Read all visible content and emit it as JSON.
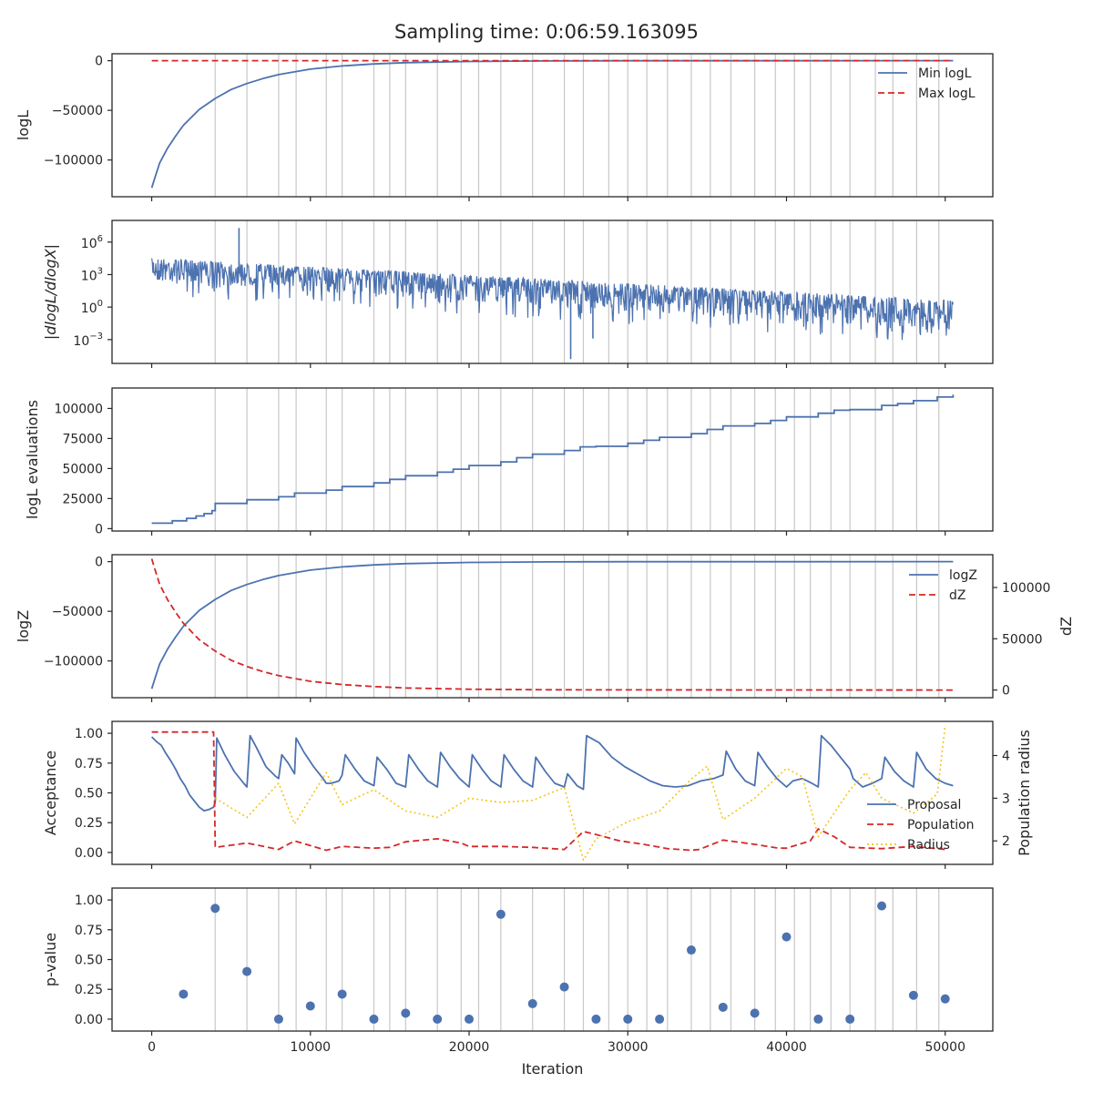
{
  "title": "Sampling time: 0:06:59.163095",
  "colors": {
    "blue": "#4c72b0",
    "red": "#d62728",
    "gold": "#f5c518",
    "grid": "#c8c8c8",
    "axis": "#262626"
  },
  "chart_data": [
    {
      "id": "logl",
      "type": "line",
      "ylabel": "logL",
      "xlim": [
        -2500,
        53000
      ],
      "ylim": [
        -137000,
        7000
      ],
      "yticks": [
        0,
        -50000,
        -100000
      ],
      "ytick_labels": [
        "0",
        "−50000",
        "−100000"
      ],
      "legend": {
        "position": "top-right",
        "entries": [
          "Min logL",
          "Max logL"
        ]
      },
      "series": [
        {
          "name": "Min logL",
          "style": "solid",
          "color": "blue",
          "x": [
            0,
            200,
            500,
            1000,
            1500,
            2000,
            3000,
            4000,
            5000,
            6000,
            7000,
            8000,
            10000,
            12000,
            14000,
            16000,
            20000,
            25000,
            30000,
            40000,
            50500
          ],
          "y": [
            -128000,
            -118000,
            -103000,
            -88000,
            -76000,
            -65000,
            -49000,
            -38000,
            -29000,
            -23000,
            -18000,
            -14000,
            -8500,
            -5300,
            -3300,
            -2000,
            -800,
            -250,
            -100,
            -20,
            0
          ]
        },
        {
          "name": "Max logL",
          "style": "dashed",
          "color": "red",
          "x": [
            0,
            50500
          ],
          "y": [
            0,
            0
          ]
        }
      ]
    },
    {
      "id": "dlogl",
      "type": "line",
      "ylabel": "|dlogL/dlogX|",
      "yscale": "log",
      "ylim_log10": [
        -5.2,
        8
      ],
      "yticks_log10": [
        6,
        3,
        0,
        -3
      ],
      "ytick_labels": [
        "10",
        "10",
        "10",
        "10"
      ],
      "ytick_exponents": [
        "6",
        "3",
        "0",
        "−3"
      ],
      "noise_band": {
        "x": [
          0,
          50500
        ],
        "upper_log10": [
          4.5,
          0.6
        ],
        "lower_log10": [
          2.3,
          -2.2
        ]
      },
      "spikes": [
        {
          "x": 5500,
          "log10": 7.3
        },
        {
          "x": 26400,
          "log10": -4.8
        },
        {
          "x": 27800,
          "log10": -2.9
        }
      ]
    },
    {
      "id": "evals",
      "type": "step",
      "ylabel": "logL evaluations",
      "ylim": [
        -2000,
        117000
      ],
      "yticks": [
        0,
        25000,
        50000,
        75000,
        100000
      ],
      "ytick_labels": [
        "0",
        "25000",
        "50000",
        "75000",
        "100000"
      ],
      "series": [
        {
          "name": "logL evaluations",
          "color": "blue",
          "x": [
            0,
            1300,
            2200,
            2800,
            3300,
            3800,
            4000,
            6000,
            8000,
            9000,
            11000,
            12000,
            14000,
            15000,
            16000,
            18000,
            19000,
            20000,
            22000,
            23000,
            24000,
            26000,
            27000,
            28000,
            30000,
            31000,
            32000,
            34000,
            35000,
            36000,
            38000,
            39000,
            40000,
            42000,
            43000,
            44000,
            46000,
            47000,
            48000,
            49500,
            50500
          ],
          "y": [
            4500,
            6500,
            8500,
            10500,
            12500,
            15000,
            21000,
            24000,
            26500,
            29500,
            32000,
            35000,
            38000,
            41000,
            44000,
            47000,
            49500,
            52500,
            55500,
            59000,
            62000,
            65000,
            68000,
            68500,
            71000,
            73500,
            76000,
            79000,
            82500,
            85500,
            87500,
            90000,
            93000,
            96000,
            98500,
            99000,
            102500,
            104000,
            106500,
            109500,
            111500
          ]
        }
      ]
    },
    {
      "id": "logz",
      "type": "line",
      "ylabel": "logZ",
      "ylabel2": "dZ",
      "ylim": [
        -137000,
        7000
      ],
      "yticks": [
        0,
        -50000,
        -100000
      ],
      "ytick_labels": [
        "0",
        "−50000",
        "−100000"
      ],
      "y2lim": [
        -7500,
        132000
      ],
      "y2ticks": [
        0,
        50000,
        100000
      ],
      "y2tick_labels": [
        "0",
        "50000",
        "100000"
      ],
      "legend": {
        "position": "top-right",
        "entries": [
          "logZ",
          "dZ"
        ]
      },
      "series": [
        {
          "name": "logZ",
          "axis": "left",
          "style": "solid",
          "color": "blue",
          "x": [
            0,
            200,
            500,
            1000,
            1500,
            2000,
            3000,
            4000,
            5000,
            6000,
            7000,
            8000,
            10000,
            12000,
            14000,
            16000,
            20000,
            25000,
            30000,
            40000,
            50500
          ],
          "y": [
            -128000,
            -118000,
            -103000,
            -88000,
            -76000,
            -65000,
            -49000,
            -38000,
            -29000,
            -23000,
            -18000,
            -14000,
            -8500,
            -5300,
            -3300,
            -2000,
            -800,
            -250,
            -100,
            -20,
            0
          ]
        },
        {
          "name": "dZ",
          "axis": "right",
          "style": "dashed",
          "color": "red",
          "x": [
            0,
            200,
            500,
            1000,
            1500,
            2000,
            3000,
            4000,
            5000,
            6000,
            7000,
            8000,
            10000,
            12000,
            14000,
            16000,
            20000,
            25000,
            30000,
            40000,
            50500
          ],
          "y": [
            128000,
            118000,
            103000,
            88000,
            76000,
            65000,
            49000,
            38000,
            29000,
            23000,
            18000,
            14000,
            8500,
            5300,
            3300,
            2000,
            800,
            250,
            100,
            20,
            0
          ]
        }
      ]
    },
    {
      "id": "accept",
      "type": "line",
      "ylabel": "Acceptance",
      "ylabel2": "Population radius",
      "ylim": [
        -0.1,
        1.1
      ],
      "yticks": [
        0,
        0.25,
        0.5,
        0.75,
        1
      ],
      "ytick_labels": [
        "0.00",
        "0.25",
        "0.50",
        "0.75",
        "1.00"
      ],
      "y2lim": [
        1.45,
        4.8
      ],
      "y2ticks": [
        2,
        3,
        4
      ],
      "y2tick_labels": [
        "2",
        "3",
        "4"
      ],
      "legend": {
        "position": "lower-right",
        "entries": [
          "Proposal",
          "Population",
          "Radius"
        ]
      },
      "series": [
        {
          "name": "Proposal",
          "axis": "left",
          "style": "solid",
          "color": "blue",
          "x": [
            0,
            300,
            600,
            900,
            1200,
            1500,
            1800,
            2100,
            2400,
            2700,
            3000,
            3300,
            3600,
            3900,
            4000,
            4100,
            4600,
            5200,
            5800,
            6000,
            6200,
            6600,
            7200,
            7800,
            8000,
            8200,
            8600,
            9000,
            9100,
            9600,
            10200,
            10800,
            11000,
            11300,
            11800,
            12000,
            12200,
            12800,
            13400,
            14000,
            14200,
            14800,
            15400,
            16000,
            16200,
            16800,
            17400,
            18000,
            18200,
            18800,
            19400,
            20000,
            20200,
            20800,
            21400,
            22000,
            22200,
            22800,
            23400,
            24000,
            24200,
            24800,
            25400,
            26000,
            26200,
            26800,
            27200,
            27400,
            28200,
            29000,
            29800,
            30600,
            31400,
            32200,
            33000,
            33800,
            34600,
            35400,
            36000,
            36200,
            36800,
            37400,
            38000,
            38200,
            38800,
            39400,
            40000,
            40400,
            41000,
            41600,
            42000,
            42200,
            42800,
            43400,
            44000,
            44200,
            44800,
            45400,
            46000,
            46200,
            46800,
            47400,
            48000,
            48200,
            48800,
            49400,
            50000,
            50500
          ],
          "y": [
            0.97,
            0.93,
            0.9,
            0.83,
            0.77,
            0.7,
            0.62,
            0.56,
            0.48,
            0.43,
            0.38,
            0.35,
            0.36,
            0.38,
            0.42,
            0.96,
            0.82,
            0.68,
            0.58,
            0.55,
            0.98,
            0.88,
            0.72,
            0.64,
            0.62,
            0.82,
            0.75,
            0.66,
            0.96,
            0.84,
            0.72,
            0.62,
            0.58,
            0.58,
            0.6,
            0.65,
            0.82,
            0.7,
            0.6,
            0.56,
            0.8,
            0.7,
            0.58,
            0.55,
            0.82,
            0.7,
            0.6,
            0.55,
            0.84,
            0.72,
            0.62,
            0.55,
            0.82,
            0.7,
            0.6,
            0.55,
            0.82,
            0.7,
            0.6,
            0.55,
            0.8,
            0.68,
            0.58,
            0.55,
            0.66,
            0.56,
            0.53,
            0.98,
            0.92,
            0.8,
            0.72,
            0.66,
            0.6,
            0.56,
            0.55,
            0.56,
            0.6,
            0.62,
            0.65,
            0.85,
            0.7,
            0.6,
            0.56,
            0.84,
            0.72,
            0.62,
            0.55,
            0.6,
            0.62,
            0.58,
            0.55,
            0.98,
            0.9,
            0.8,
            0.7,
            0.62,
            0.55,
            0.58,
            0.62,
            0.8,
            0.68,
            0.6,
            0.55,
            0.84,
            0.7,
            0.62,
            0.58,
            0.56
          ]
        },
        {
          "name": "Population",
          "axis": "right",
          "style": "dashed",
          "color": "red",
          "x": [
            0,
            3900,
            4000,
            6000,
            8000,
            9000,
            11000,
            12000,
            14000,
            15000,
            16000,
            18000,
            19500,
            20000,
            22000,
            24000,
            26000,
            27200,
            28000,
            29500,
            31000,
            32500,
            34000,
            34500,
            36000,
            38000,
            39500,
            40000,
            41500,
            42000,
            43000,
            44000,
            46000,
            48000,
            50000
          ],
          "y": [
            4.55,
            4.55,
            1.85,
            1.95,
            1.8,
            2.0,
            1.78,
            1.87,
            1.83,
            1.85,
            1.98,
            2.05,
            1.95,
            1.87,
            1.87,
            1.85,
            1.8,
            2.22,
            2.15,
            2.0,
            1.92,
            1.82,
            1.78,
            1.8,
            2.02,
            1.92,
            1.83,
            1.83,
            2.0,
            2.28,
            2.1,
            1.85,
            1.82,
            1.87,
            1.8
          ]
        },
        {
          "name": "Radius",
          "axis": "right",
          "style": "dotted",
          "color": "gold",
          "x": [
            4000,
            6000,
            8000,
            9000,
            11000,
            12000,
            14000,
            16000,
            18000,
            20000,
            22000,
            24000,
            26000,
            27200,
            28000,
            30000,
            32000,
            34000,
            35000,
            36000,
            38000,
            40000,
            41000,
            42000,
            44000,
            45000,
            46000,
            48000,
            49500,
            50000
          ],
          "y": [
            3.0,
            2.55,
            3.35,
            2.4,
            3.6,
            2.85,
            3.2,
            2.7,
            2.55,
            3.0,
            2.9,
            2.95,
            3.25,
            1.55,
            2.05,
            2.45,
            2.7,
            3.45,
            3.75,
            2.5,
            3.0,
            3.7,
            3.5,
            2.1,
            3.2,
            3.6,
            3.0,
            2.65,
            3.1,
            4.7
          ]
        }
      ]
    },
    {
      "id": "pvalue",
      "type": "scatter",
      "ylabel": "p-value",
      "xlabel": "Iteration",
      "ylim": [
        -0.1,
        1.1
      ],
      "yticks": [
        0,
        0.25,
        0.5,
        0.75,
        1
      ],
      "ytick_labels": [
        "0.00",
        "0.25",
        "0.50",
        "0.75",
        "1.00"
      ],
      "xticks": [
        0,
        10000,
        20000,
        30000,
        40000,
        50000
      ],
      "xtick_labels": [
        "0",
        "10000",
        "20000",
        "30000",
        "40000",
        "50000"
      ],
      "series": [
        {
          "name": "p-value",
          "color": "blue",
          "x": [
            2000,
            4000,
            6000,
            8000,
            10000,
            12000,
            14000,
            16000,
            18000,
            20000,
            22000,
            24000,
            26000,
            28000,
            30000,
            32000,
            34000,
            36000,
            38000,
            40000,
            42000,
            44000,
            46000,
            48000,
            50000
          ],
          "y": [
            0.21,
            0.93,
            0.4,
            0.0,
            0.11,
            0.21,
            0.0,
            0.05,
            0.0,
            0.0,
            0.88,
            0.13,
            0.27,
            0.0,
            0.0,
            0.0,
            0.58,
            0.1,
            0.05,
            0.69,
            0.0,
            0.0,
            0.95,
            0.2,
            0.17
          ]
        }
      ]
    }
  ],
  "restart_iterations": [
    4000,
    6000,
    8000,
    9100,
    11000,
    12000,
    14000,
    15000,
    16000,
    18000,
    19500,
    20600,
    22000,
    24000,
    26000,
    27200,
    28800,
    30000,
    31200,
    32500,
    34000,
    35200,
    36500,
    38000,
    39300,
    40500,
    41500,
    42800,
    44000,
    45600,
    46700,
    48200,
    49600
  ]
}
